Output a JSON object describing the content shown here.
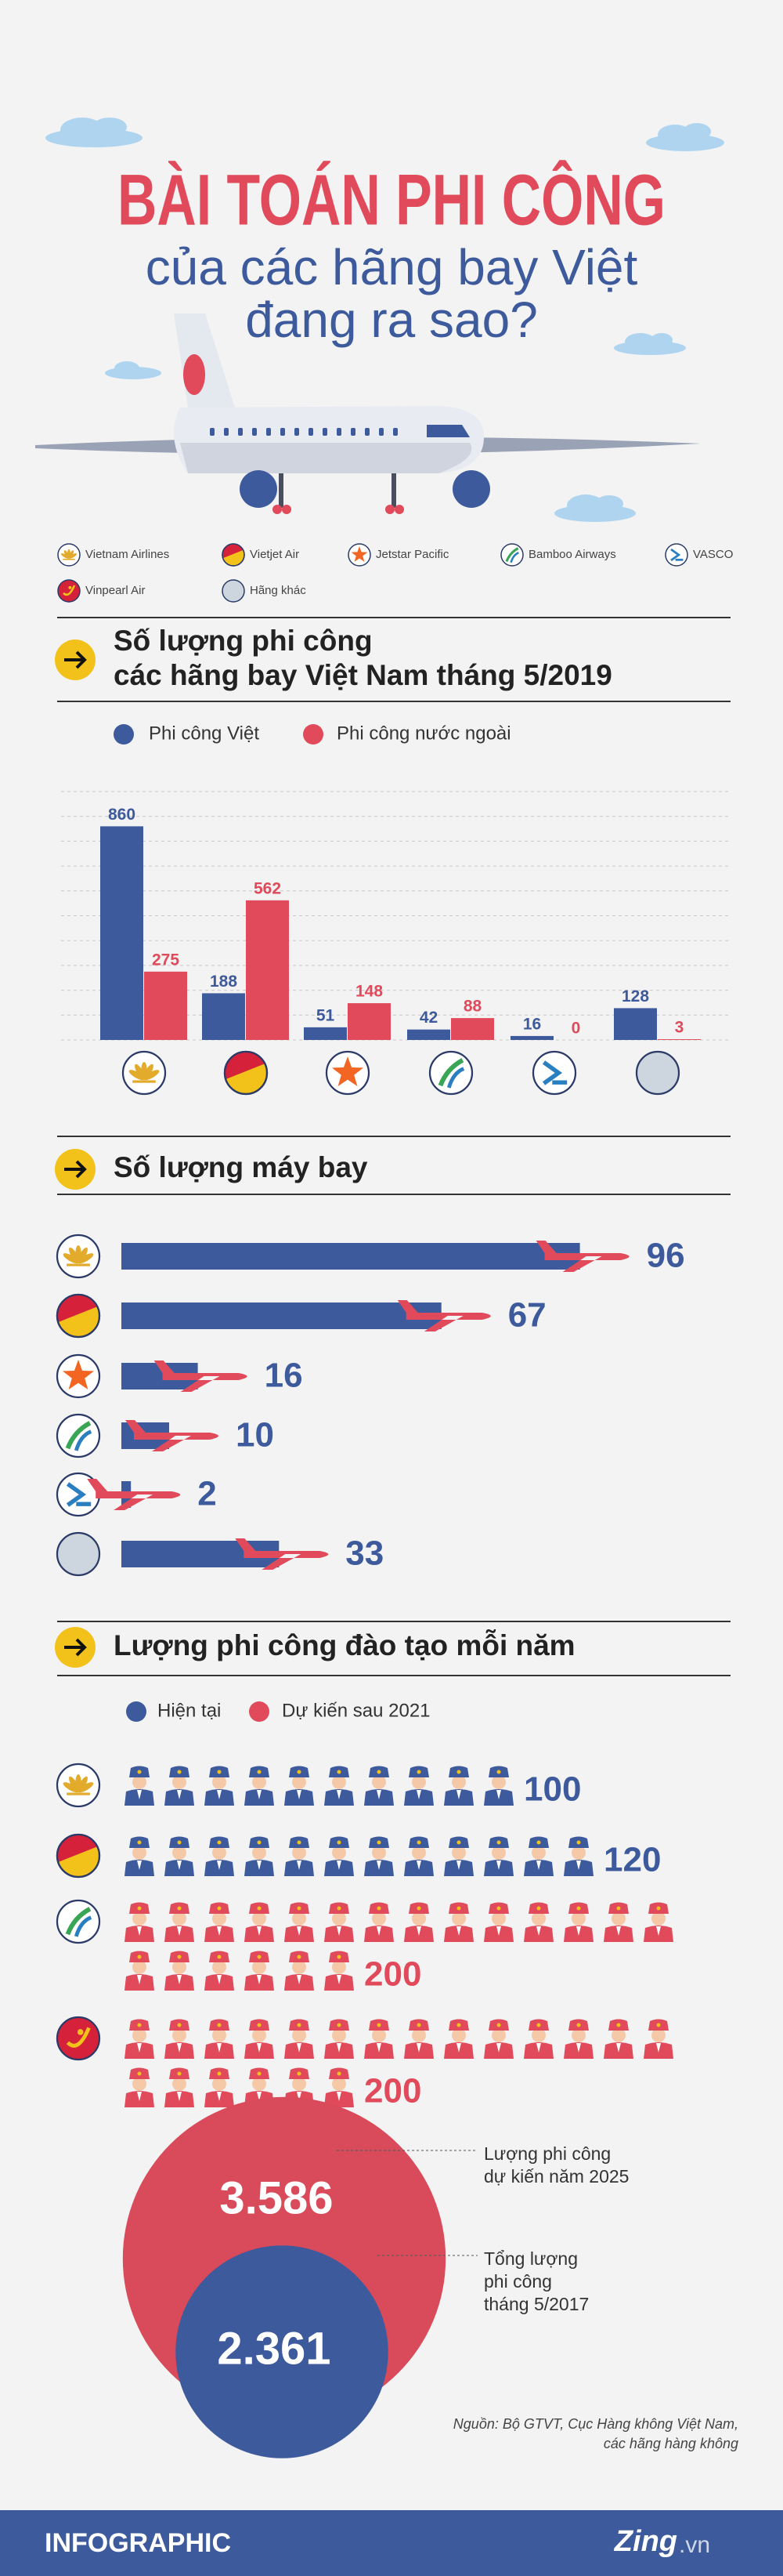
{
  "header": {
    "title": "BÀI TOÁN PHI CÔNG",
    "subtitle": [
      "của các hãng bay Việt",
      "đang ra sao?"
    ]
  },
  "airlines": [
    "Vietnam Airlines",
    "Vietjet Air",
    "Jetstar Pacific",
    "Bamboo Airways",
    "VASCO",
    "Vinpearl Air",
    "Hãng khác"
  ],
  "chart_data": [
    {
      "type": "bar",
      "title": [
        "Số lượng phi công",
        "các hãng bay Việt Nam tháng 5/2019"
      ],
      "categories": [
        null,
        null,
        null,
        null,
        null,
        null
      ],
      "series": [
        {
          "name": "Phi công Việt",
          "color": "#3d5a9c",
          "values": [
            860,
            188,
            51,
            42,
            16,
            128
          ]
        },
        {
          "name": "Phi công nước ngoài",
          "color": "#e04a5a",
          "values": [
            275,
            562,
            148,
            88,
            0,
            3
          ]
        }
      ],
      "ylim": [
        0,
        1000
      ],
      "yticks": [
        0,
        100,
        200,
        300,
        400,
        500,
        600,
        700,
        800,
        900,
        1000
      ],
      "grid": true
    },
    {
      "type": "barh",
      "title": [
        "Số lượng máy bay"
      ],
      "categories": [
        null,
        null,
        null,
        null,
        null,
        null
      ],
      "values": [
        96,
        67,
        16,
        10,
        2,
        33
      ],
      "color": "#3d5a9c",
      "xlim": [
        0,
        100
      ]
    },
    {
      "type": "pictograph",
      "title": [
        "Lượng phi công đào tạo mỗi năm"
      ],
      "categories": [
        null,
        null,
        null,
        null
      ],
      "series": [
        {
          "name": "Hiện tại",
          "color": "#3d5a9c",
          "values": [
            100,
            120,
            null,
            null
          ]
        },
        {
          "name": "Dự kiến sau 2021",
          "color": "#e04a5a",
          "values": [
            null,
            null,
            200,
            200
          ]
        }
      ]
    },
    {
      "type": "circle",
      "values": [
        3586,
        2361
      ],
      "value_labels": [
        "3.586",
        "2.361"
      ],
      "colors": [
        "#d94a5a",
        "#3d5a9c"
      ],
      "annotations": [
        [
          "Lượng phi công",
          "dự kiến năm 2025"
        ],
        [
          "Tổng lượng",
          "phi công",
          "tháng 5/2017"
        ]
      ]
    }
  ],
  "footer": {
    "source": [
      "Nguồn: Bộ GTVT, Cục Hàng không Việt Nam,",
      "các hãng hàng không"
    ],
    "brand": "INFOGRAPHIC",
    "logo": [
      "Zing",
      ".vn"
    ]
  }
}
